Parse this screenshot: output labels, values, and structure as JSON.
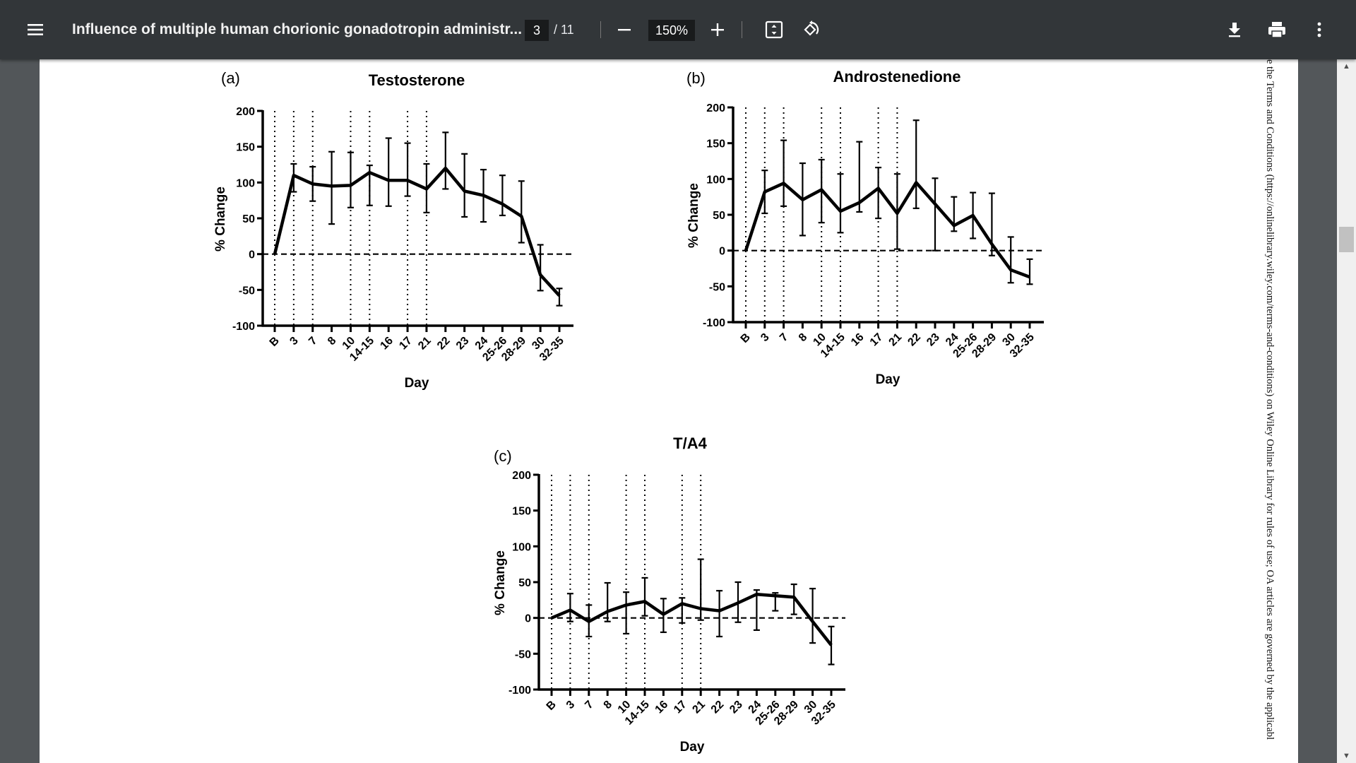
{
  "toolbar": {
    "title": "Influence of multiple human chorionic gonadotropin administr...",
    "page_current": "3",
    "page_total": "/ 11",
    "zoom": "150%",
    "icons": [
      "menu-icon",
      "zoom-out-icon",
      "zoom-in-icon",
      "fit-page-icon",
      "rotate-icon",
      "download-icon",
      "print-icon",
      "more-vert-icon"
    ]
  },
  "side_note": "e the Terms and Conditions (https://onlinelibrary.wiley.com/terms-and-conditions) on Wiley Online Library for rules of use; OA articles are governed by the applicabl",
  "colors": {
    "toolbar": "#323639",
    "background": "#525659",
    "line": "#000000"
  },
  "chart_data": [
    {
      "type": "line",
      "panel": "(a)",
      "title": "Testosterone",
      "xlabel": "Day",
      "ylabel": "% Change",
      "ylim": [
        -100,
        200
      ],
      "yticks": [
        "-100",
        "-50",
        "0",
        "50",
        "100",
        "150",
        "200"
      ],
      "categories": [
        "B",
        "3",
        "7",
        "8",
        "10",
        "14-15",
        "16",
        "17",
        "21",
        "22",
        "23",
        "24",
        "25-26",
        "28-29",
        "30",
        "32-35"
      ],
      "values": [
        0,
        110,
        98,
        95,
        96,
        114,
        103,
        103,
        91,
        120,
        88,
        82,
        70,
        53,
        -29,
        -58
      ],
      "err_upper": [
        0,
        126,
        122,
        143,
        142,
        124,
        162,
        155,
        126,
        170,
        140,
        118,
        110,
        102,
        13,
        -48
      ],
      "err_lower": [
        0,
        87,
        74,
        42,
        65,
        68,
        67,
        81,
        58,
        91,
        52,
        45,
        54,
        16,
        -51,
        -72
      ],
      "dotted_vlines_at": [
        "B",
        "3",
        "7",
        "10",
        "14-15",
        "17",
        "21"
      ],
      "reference_line_y": 0
    },
    {
      "type": "line",
      "panel": "(b)",
      "title": "Androstenedione",
      "xlabel": "Day",
      "ylabel": "% Change",
      "ylim": [
        -100,
        200
      ],
      "yticks": [
        "-100",
        "-50",
        "0",
        "50",
        "100",
        "150",
        "200"
      ],
      "categories": [
        "B",
        "3",
        "7",
        "8",
        "10",
        "14-15",
        "16",
        "17",
        "21",
        "22",
        "23",
        "24",
        "25-26",
        "28-29",
        "30",
        "32-35"
      ],
      "values": [
        0,
        82,
        94,
        71,
        85,
        55,
        67,
        87,
        52,
        95,
        65,
        35,
        49,
        9,
        -27,
        -37
      ],
      "err_upper": [
        0,
        112,
        154,
        122,
        127,
        107,
        152,
        116,
        107,
        182,
        101,
        75,
        81,
        80,
        19,
        -12
      ],
      "err_lower": [
        0,
        52,
        62,
        21,
        39,
        25,
        54,
        45,
        2,
        59,
        0,
        27,
        17,
        -7,
        -45,
        -47
      ],
      "dotted_vlines_at": [
        "B",
        "3",
        "7",
        "10",
        "14-15",
        "17",
        "21"
      ],
      "reference_line_y": 0
    },
    {
      "type": "line",
      "panel": "(c)",
      "title": "T/A4",
      "xlabel": "Day",
      "ylabel": "% Change",
      "ylim": [
        -100,
        200
      ],
      "yticks": [
        "-100",
        "-50",
        "0",
        "50",
        "100",
        "150",
        "200"
      ],
      "categories": [
        "B",
        "3",
        "7",
        "8",
        "10",
        "14-15",
        "16",
        "17",
        "21",
        "22",
        "23",
        "24",
        "25-26",
        "28-29",
        "30",
        "32-35"
      ],
      "values": [
        0,
        11,
        -5,
        9,
        18,
        23,
        5,
        20,
        13,
        10,
        21,
        33,
        31,
        29,
        -5,
        -38
      ],
      "err_upper": [
        0,
        34,
        18,
        49,
        36,
        56,
        27,
        28,
        82,
        38,
        50,
        39,
        35,
        47,
        41,
        -12
      ],
      "err_lower": [
        0,
        -5,
        -26,
        -5,
        -22,
        3,
        -20,
        -7,
        -3,
        -26,
        -6,
        -17,
        10,
        5,
        -35,
        -65
      ],
      "dotted_vlines_at": [
        "B",
        "3",
        "7",
        "10",
        "14-15",
        "17",
        "21"
      ],
      "reference_line_y": 0
    }
  ]
}
